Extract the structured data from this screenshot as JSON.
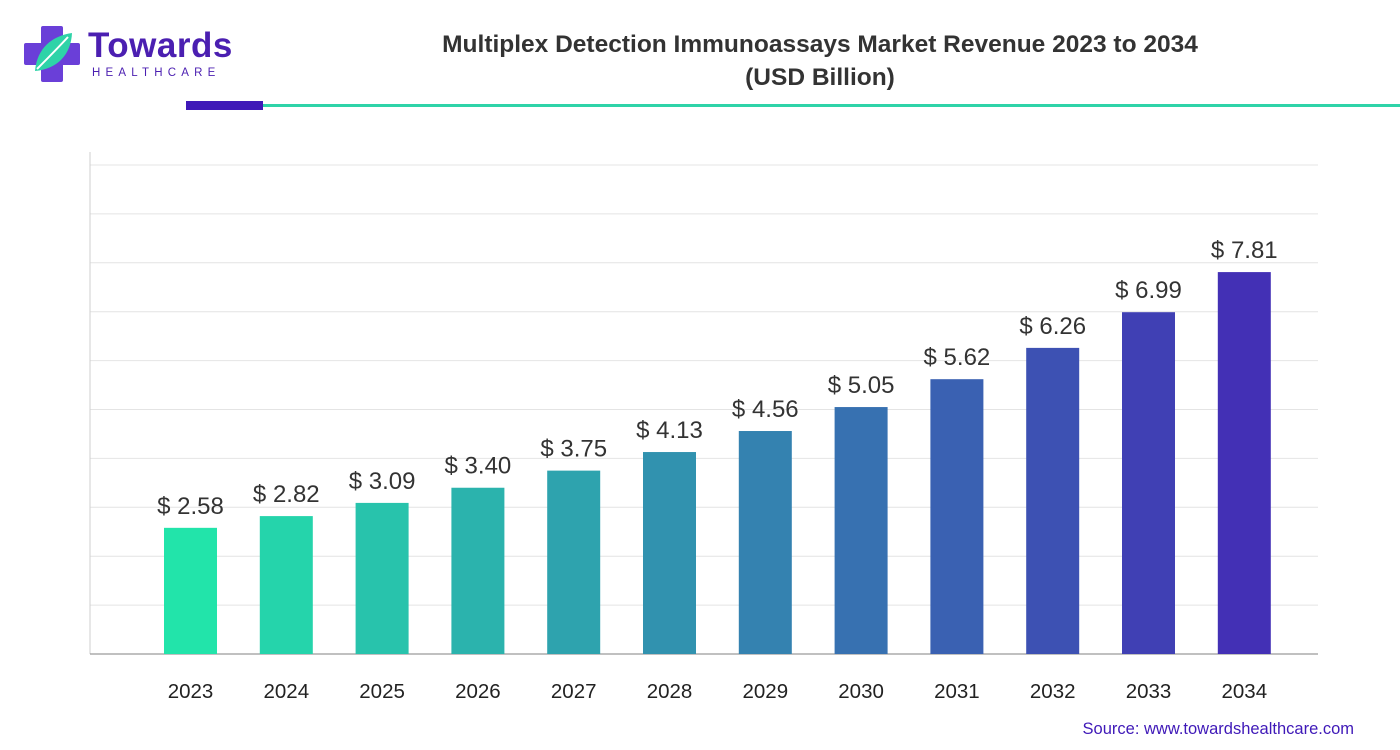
{
  "brand": {
    "name": "Towards",
    "subtitle": "HEALTHCARE",
    "colors": {
      "purple": "#4b1fb1",
      "teal": "#2ed3a8"
    }
  },
  "chart_data": {
    "type": "bar",
    "title": "Multiplex Detection Immunoassays Market Revenue 2023 to 2034",
    "subtitle": "(USD Billion)",
    "xlabel": "",
    "ylabel": "",
    "categories": [
      "2023",
      "2024",
      "2025",
      "2026",
      "2027",
      "2028",
      "2029",
      "2030",
      "2031",
      "2032",
      "2033",
      "2034"
    ],
    "values": [
      2.58,
      2.82,
      3.09,
      3.4,
      3.75,
      4.13,
      4.56,
      5.05,
      5.62,
      6.26,
      6.99,
      7.81
    ],
    "data_labels": [
      "$ 2.58",
      "$ 2.82",
      "$ 3.09",
      "$ 3.40",
      "$ 3.75",
      "$ 4.13",
      "$ 4.56",
      "$ 5.05",
      "$ 5.62",
      "$ 6.26",
      "$ 6.99",
      "$ 7.81"
    ],
    "ylim": [
      0,
      10
    ],
    "grid": true,
    "y_tick_labels_visible": false,
    "bar_color_start": "#22e4aa",
    "bar_color_end": "#4330b5"
  },
  "source": "Source: www.towardshealthcare.com"
}
